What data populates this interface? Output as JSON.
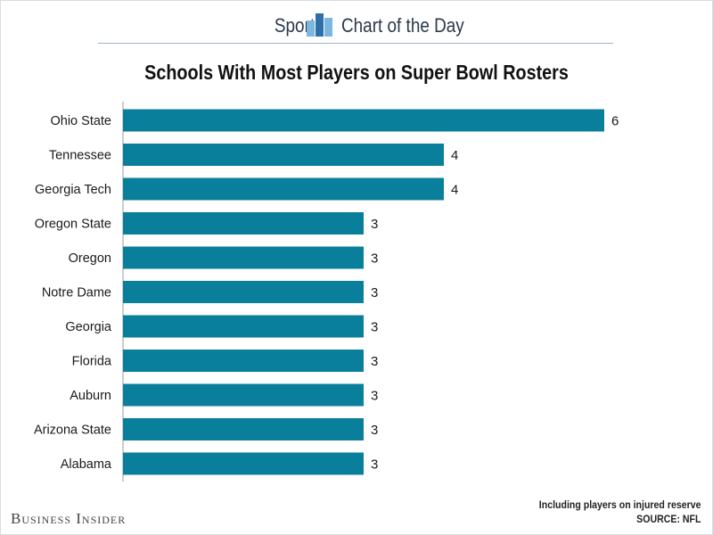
{
  "banner": {
    "left_text": "Sports",
    "right_text": "Chart of the Day"
  },
  "brand": "Business Insider",
  "footnote": {
    "note": "Including players on injured reserve",
    "source": "SOURCE: NFL"
  },
  "colors": {
    "bar": "#0a7f9b",
    "logo_light": "#7bb7df",
    "logo_dark": "#2f6fa8"
  },
  "chart_data": {
    "type": "bar",
    "orientation": "horizontal",
    "title": "Schools With Most Players on Super Bowl Rosters",
    "categories": [
      "Ohio State",
      "Tennessee",
      "Georgia Tech",
      "Oregon State",
      "Oregon",
      "Notre Dame",
      "Georgia",
      "Florida",
      "Auburn",
      "Arizona State",
      "Alabama"
    ],
    "values": [
      6,
      4,
      4,
      3,
      3,
      3,
      3,
      3,
      3,
      3,
      3
    ],
    "xlim": [
      0,
      6
    ],
    "grid": false,
    "data_labels": true
  }
}
